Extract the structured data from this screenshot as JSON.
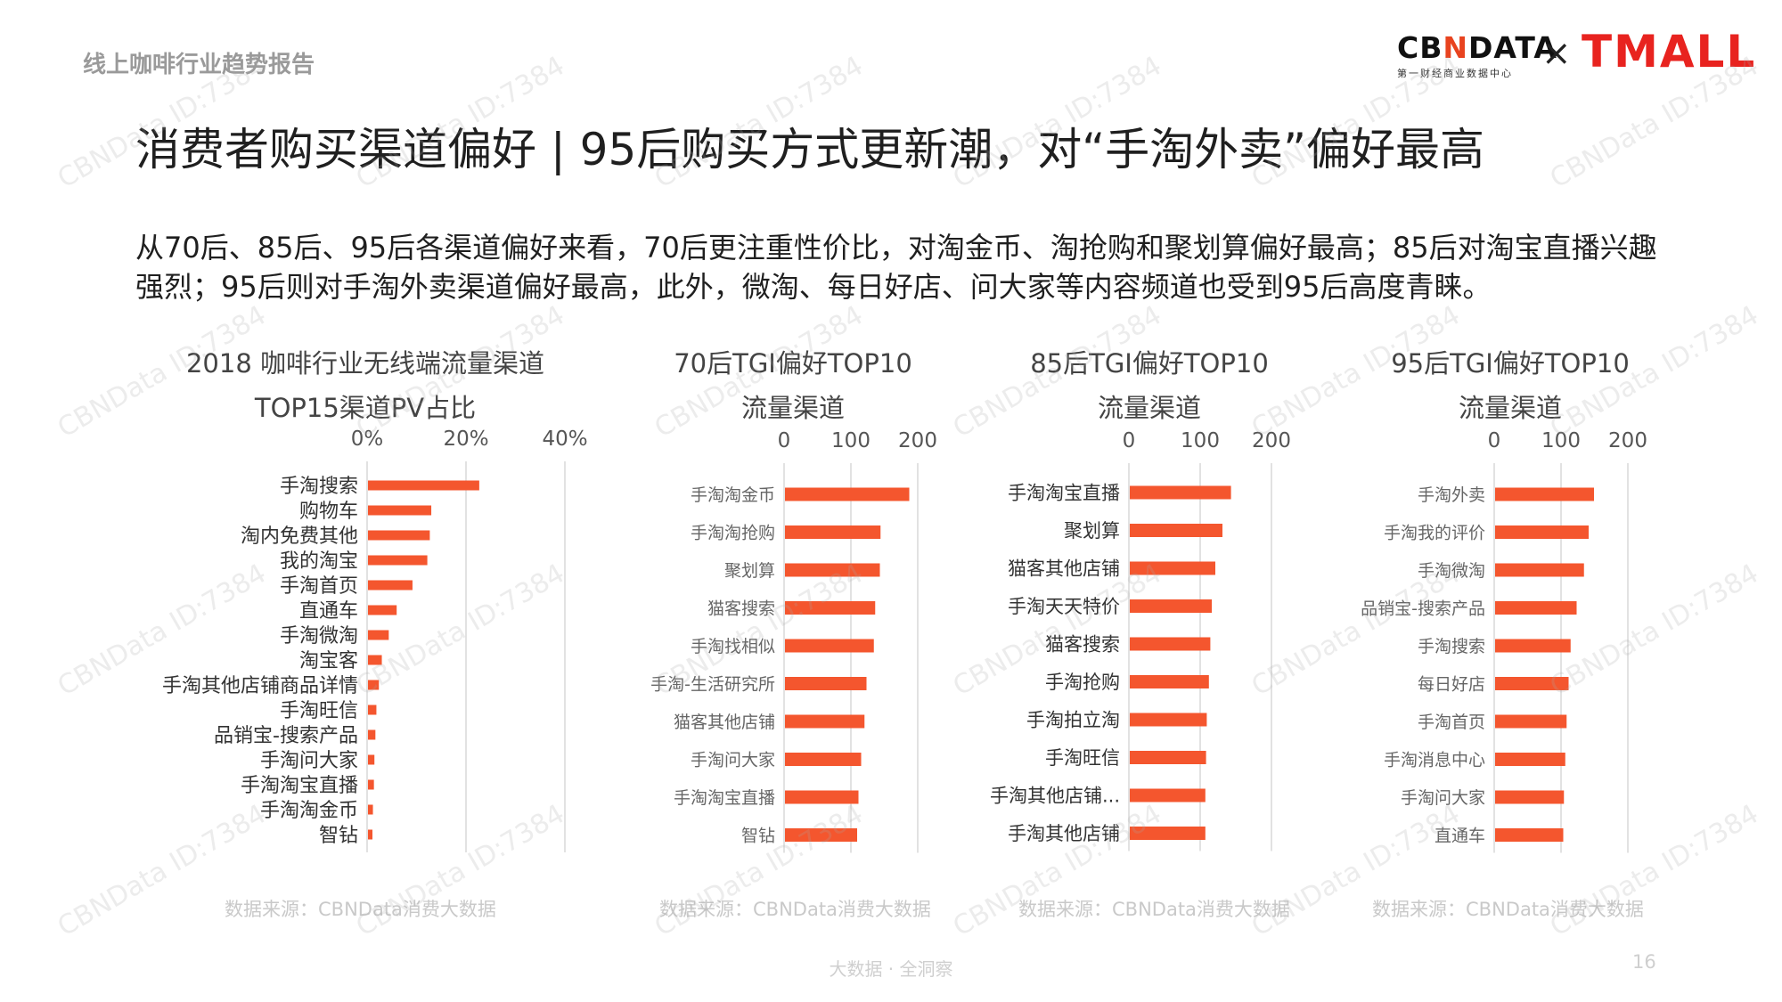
{
  "header": {
    "report_tag": "线上咖啡行业趋势报告",
    "logo_cbn_prefix": "CB",
    "logo_cbn_n": "N",
    "logo_cbn_suffix": "DATA",
    "logo_cbn_sub": "第一财经商业数据中心",
    "logo_times": "×",
    "logo_tmall": "TMALL"
  },
  "headline": "消费者购买渠道偏好 | 95后购买方式更新潮，对“手淘外卖”偏好最高",
  "summary": "从70后、85后、95后各渠道偏好来看，70后更注重性价比，对淘金币、淘抢购和聚划算偏好最高；85后对淘宝直播兴趣强烈；95后则对手淘外卖渠道偏好最高，此外，微淘、每日好店、问大家等内容频道也受到95后高度青睐。",
  "colors": {
    "bar": "#f4562e",
    "axis": "#d9d9d9"
  },
  "chart_data": [
    {
      "type": "bar",
      "orientation": "horizontal",
      "title_line1": "2018 咖啡行业无线端流量渠道",
      "title_line2": "TOP15渠道PV占比",
      "ticks": [
        "0%",
        "20%",
        "40%"
      ],
      "xlim": [
        0,
        40
      ],
      "source": "数据来源：CBNData消费大数据",
      "categories": [
        "手淘搜索",
        "购物车",
        "淘内免费其他",
        "我的淘宝",
        "手淘首页",
        "直通车",
        "手淘微淘",
        "淘宝客",
        "手淘其他店铺商品详情",
        "手淘旺信",
        "品销宝-搜索产品",
        "手淘问大家",
        "手淘淘宝直播",
        "手淘淘金币",
        "智钻"
      ],
      "values": [
        22.5,
        12.8,
        12.5,
        12.0,
        9.0,
        5.8,
        4.2,
        2.8,
        2.2,
        1.7,
        1.5,
        1.3,
        1.2,
        1.0,
        0.9
      ]
    },
    {
      "type": "bar",
      "orientation": "horizontal",
      "title_line1": "70后TGI偏好TOP10",
      "title_line2": "流量渠道",
      "ticks": [
        "0",
        "100",
        "200"
      ],
      "xlim": [
        0,
        200
      ],
      "source": "数据来源：CBNData消费大数据",
      "categories": [
        "手淘淘金币",
        "手淘淘抢购",
        "聚划算",
        "猫客搜索",
        "手淘找相似",
        "手淘-生活研究所",
        "猫客其他店铺",
        "手淘问大家",
        "手淘淘宝直播",
        "智钻"
      ],
      "values": [
        186,
        143,
        142,
        135,
        133,
        122,
        119,
        114,
        110,
        108
      ]
    },
    {
      "type": "bar",
      "orientation": "horizontal",
      "title_line1": "85后TGI偏好TOP10",
      "title_line2": "流量渠道",
      "ticks": [
        "0",
        "100",
        "200"
      ],
      "xlim": [
        0,
        200
      ],
      "source": "数据来源：CBNData消费大数据",
      "categories": [
        "手淘淘宝直播",
        "聚划算",
        "猫客其他店铺",
        "手淘天天特价",
        "猫客搜索",
        "手淘抢购",
        "手淘拍立淘",
        "手淘旺信",
        "手淘其他店铺...",
        "手淘其他店铺"
      ],
      "values": [
        142,
        130,
        120,
        115,
        113,
        111,
        108,
        107,
        106,
        106
      ]
    },
    {
      "type": "bar",
      "orientation": "horizontal",
      "title_line1": "95后TGI偏好TOP10",
      "title_line2": "流量渠道",
      "ticks": [
        "0",
        "100",
        "200"
      ],
      "xlim": [
        0,
        200
      ],
      "source": "数据来源：CBNData消费大数据",
      "categories": [
        "手淘外卖",
        "手淘我的评价",
        "手淘微淘",
        "品销宝-搜索产品",
        "手淘搜索",
        "每日好店",
        "手淘首页",
        "手淘消息中心",
        "手淘问大家",
        "直通车"
      ],
      "values": [
        148,
        140,
        133,
        122,
        113,
        110,
        107,
        105,
        103,
        102
      ]
    }
  ],
  "footer": {
    "text": "大数据 · 全洞察",
    "page_number": "16"
  },
  "watermark": "CBNData ID:7384"
}
